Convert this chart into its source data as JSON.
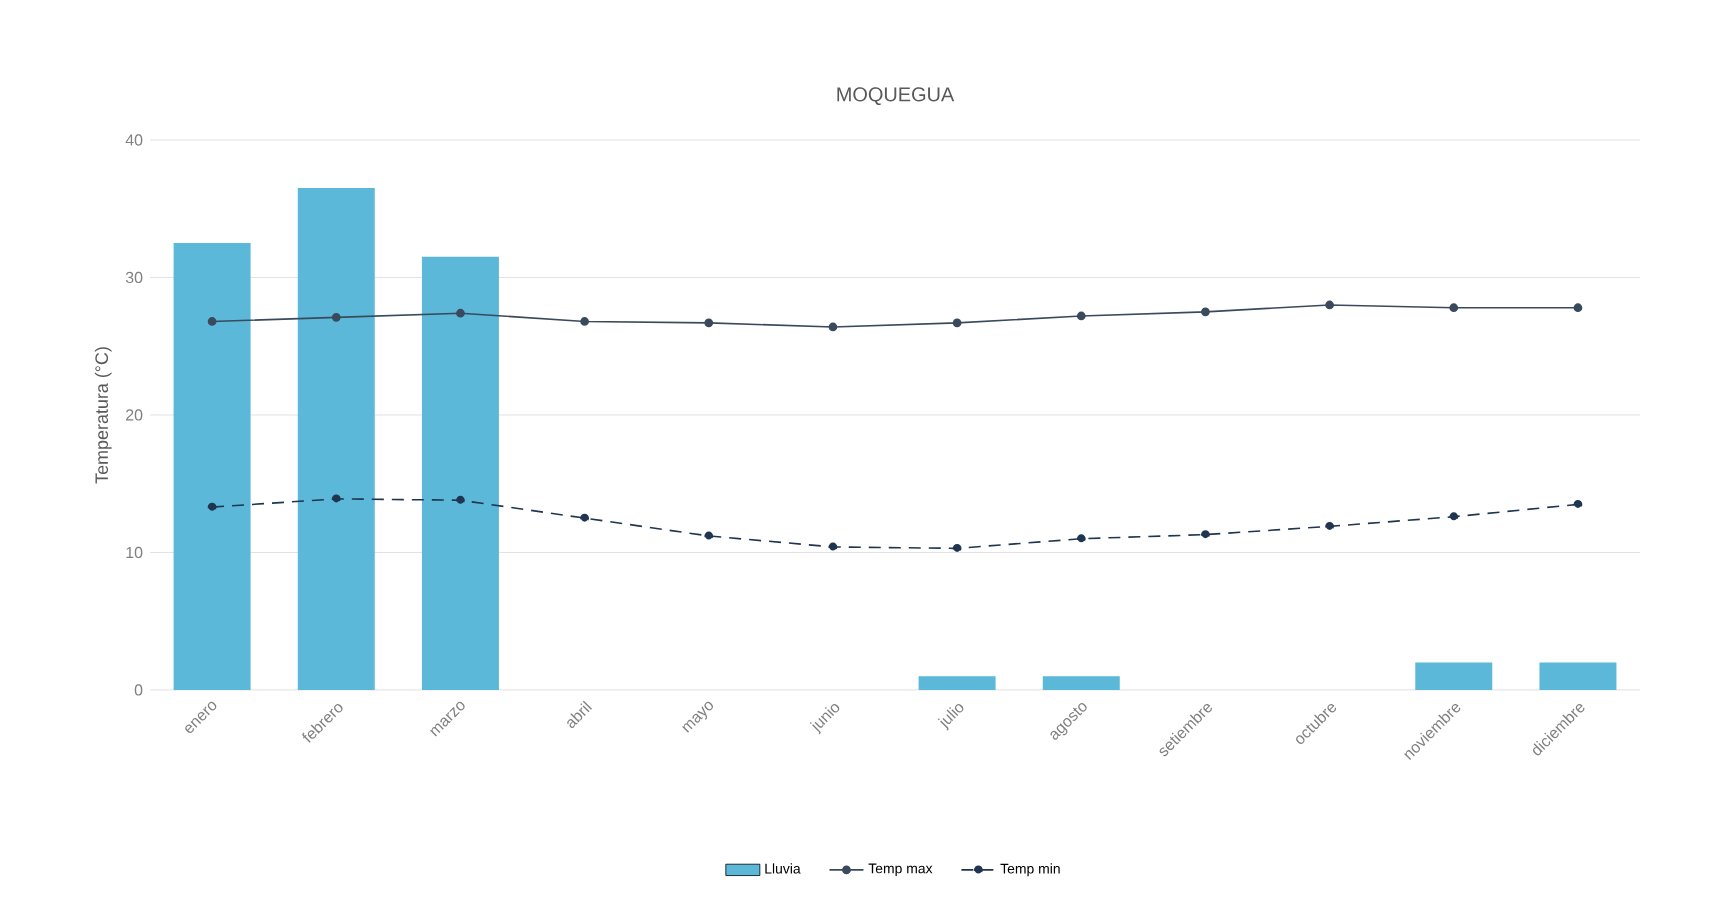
{
  "chart_data": {
    "type": "bar",
    "title": "MOQUEGUA",
    "ylabel": "Temperatura (°C)",
    "categories": [
      "enero",
      "febrero",
      "marzo",
      "abril",
      "mayo",
      "junio",
      "julio",
      "agosto",
      "setiembre",
      "octubre",
      "noviembre",
      "diciembre"
    ],
    "series": [
      {
        "name": "Lluvia",
        "color": "#5bb8d8",
        "values": [
          32.5,
          36.5,
          31.5,
          0,
          0,
          0,
          1,
          1,
          0,
          0,
          2,
          2
        ]
      },
      {
        "name": "Temp max",
        "type": "line",
        "color": "#3a4a5c",
        "marker": "circle",
        "line_style": "solid",
        "values": [
          26.8,
          27.1,
          27.4,
          26.8,
          26.7,
          26.4,
          26.7,
          27.2,
          27.5,
          28.0,
          27.8,
          27.8
        ]
      },
      {
        "name": "Temp min",
        "type": "line",
        "color": "#1f3550",
        "marker": "circle",
        "line_style": "dashed",
        "values": [
          13.3,
          13.9,
          13.8,
          12.5,
          11.2,
          10.4,
          10.3,
          11.0,
          11.3,
          11.9,
          12.6,
          13.5
        ]
      }
    ],
    "ylim": [
      0,
      40
    ],
    "yticks": [
      0,
      10,
      20,
      30,
      40
    ],
    "grid": "y",
    "legend": "bottom"
  }
}
